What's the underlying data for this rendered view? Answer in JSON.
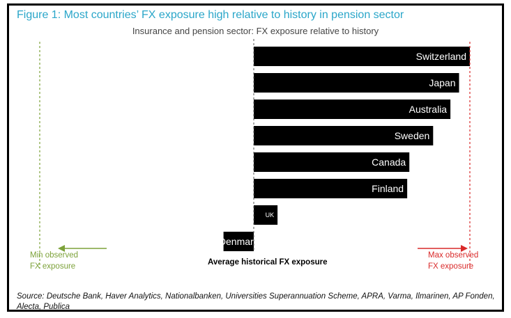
{
  "figure": {
    "title": "Figure 1: Most countries’ FX exposure high relative to history in pension sector",
    "subtitle": "Insurance and pension sector: FX exposure relative to history",
    "source": "Source: Deutsche Bank, Haver Analytics, Nationalbanken, Universities Superannuation Scheme, APRA, Varma, Ilmarinen, AP Fonden, Alecta, Publica"
  },
  "annotations": {
    "min_label": "Min observed\nFX exposure",
    "max_label": "Max observed\nFX exposure",
    "avg_label": "Average historical FX exposure"
  },
  "colors": {
    "title": "#2aa6c9",
    "bar": "#000000",
    "min_line": "#7da23a",
    "max_line": "#d92a2a"
  },
  "chart_data": {
    "type": "bar",
    "orientation": "horizontal",
    "categories": [
      "Switzerland",
      "Japan",
      "Australia",
      "Sweden",
      "Canada",
      "Finland",
      "UK",
      "Denmark"
    ],
    "values": [
      1.0,
      0.95,
      0.91,
      0.83,
      0.72,
      0.71,
      0.11,
      -0.14
    ],
    "xlim": [
      -1.0,
      1.0
    ],
    "reference_lines": {
      "min": -1.0,
      "average": 0.0,
      "max": 1.0
    },
    "grid": false,
    "legend": "none"
  }
}
